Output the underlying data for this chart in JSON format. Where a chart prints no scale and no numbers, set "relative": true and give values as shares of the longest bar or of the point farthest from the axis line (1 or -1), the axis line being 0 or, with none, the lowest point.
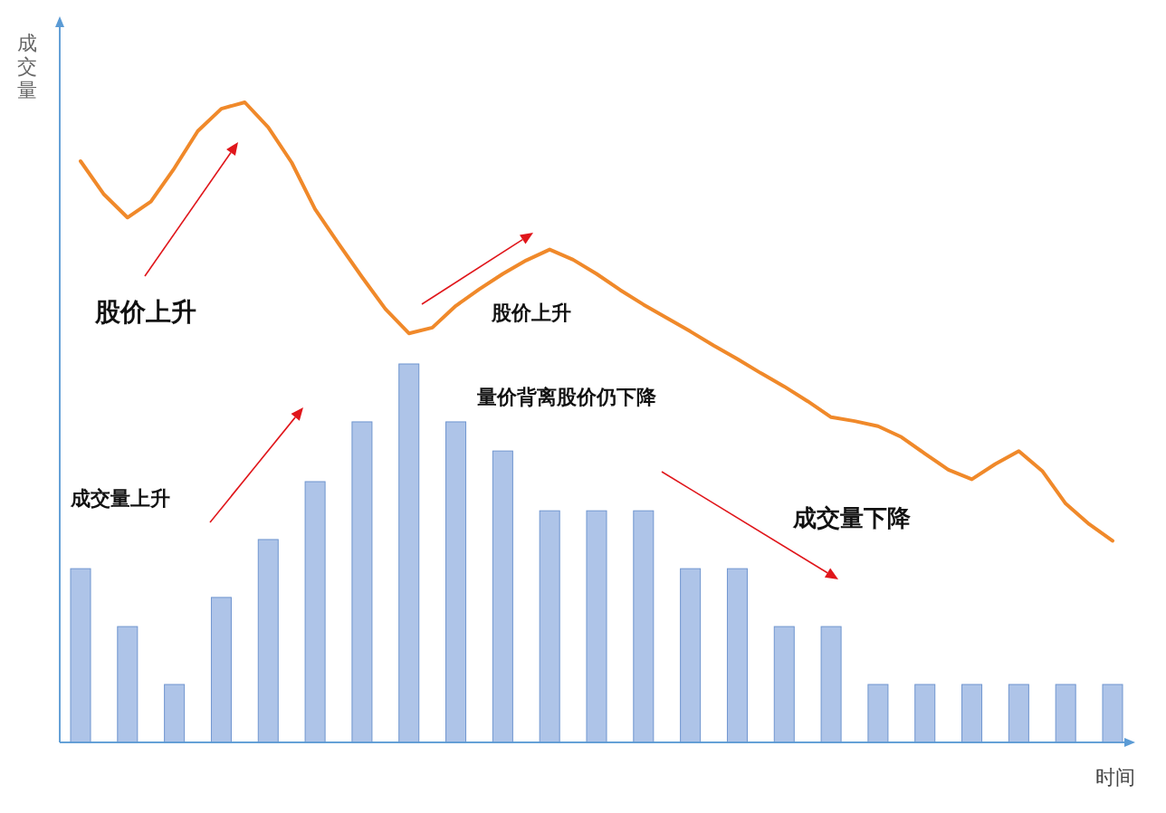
{
  "chart_data": [
    {
      "type": "bar",
      "relative": true,
      "xlabel": "时间",
      "categories": [
        null,
        null,
        null,
        null,
        null,
        null,
        null,
        null,
        null,
        null,
        null,
        null,
        null,
        null,
        null,
        null,
        null,
        null,
        null,
        null,
        null,
        null,
        null
      ],
      "color": "#aec4e8",
      "values": [
        0.459,
        0.306,
        0.153,
        0.383,
        0.536,
        0.689,
        0.847,
        1,
        0.847,
        0.77,
        0.612,
        0.612,
        0.612,
        0.459,
        0.459,
        0.306,
        0.306,
        0.153,
        0.153,
        0.153,
        0.153,
        0.153,
        0.153
      ],
      "annotations": [
        "成交量上升",
        "成交量下降"
      ]
    },
    {
      "type": "line",
      "relative": true,
      "ylabel": "成交量",
      "categories": [
        null,
        null,
        null,
        null,
        null,
        null,
        null,
        null,
        null,
        null,
        null,
        null,
        null,
        null,
        null,
        null,
        null,
        null,
        null,
        null,
        null,
        null,
        null,
        null,
        null,
        null,
        null,
        null,
        null,
        null,
        null,
        null,
        null,
        null,
        null,
        null,
        null,
        null,
        null,
        null,
        null,
        null,
        null,
        null,
        null
      ],
      "color": "#f0892a",
      "values": [
        0.908,
        0.856,
        0.82,
        0.845,
        0.897,
        0.955,
        0.99,
        1,
        0.961,
        0.906,
        0.833,
        0.779,
        0.727,
        0.677,
        0.639,
        0.648,
        0.682,
        0.708,
        0.732,
        0.753,
        0.77,
        0.754,
        0.732,
        0.707,
        0.684,
        0.663,
        0.642,
        0.62,
        0.599,
        0.577,
        0.556,
        0.533,
        0.508,
        0.502,
        0.494,
        0.477,
        0.451,
        0.426,
        0.411,
        0.435,
        0.455,
        0.424,
        0.373,
        0.341,
        0.315
      ],
      "annotations": [
        "股价上升",
        "股价上升",
        "量价背离股价仍下降"
      ]
    }
  ]
}
